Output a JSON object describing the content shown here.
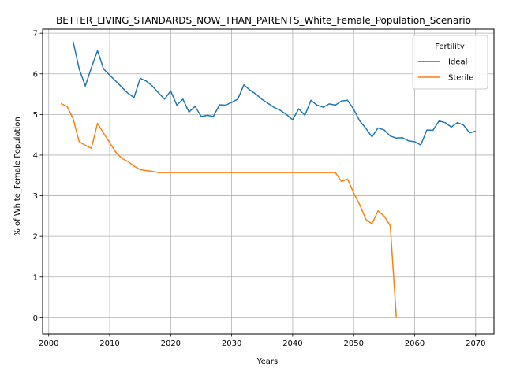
{
  "chart_data": {
    "type": "line",
    "title": "BETTER_LIVING_STANDARDS_NOW_THAN_PARENTS_White_Female_Population_Scenario",
    "xlabel": "Years",
    "ylabel": "% of White_Female Population",
    "xlim": [
      1999,
      2073
    ],
    "ylim": [
      -0.4,
      7.1
    ],
    "xticks": [
      2000,
      2010,
      2020,
      2030,
      2040,
      2050,
      2060,
      2070
    ],
    "yticks": [
      0,
      1,
      2,
      3,
      4,
      5,
      6,
      7
    ],
    "grid": true,
    "legend": {
      "title": "Fertility",
      "placement": "top-right"
    },
    "series": [
      {
        "name": "Ideal",
        "color": "#1f77b4",
        "x": [
          2004,
          2005,
          2006,
          2007,
          2008,
          2009,
          2010,
          2011,
          2012,
          2013,
          2014,
          2015,
          2016,
          2017,
          2018,
          2019,
          2020,
          2021,
          2022,
          2023,
          2024,
          2025,
          2026,
          2027,
          2028,
          2029,
          2030,
          2031,
          2032,
          2033,
          2034,
          2035,
          2036,
          2037,
          2038,
          2039,
          2040,
          2041,
          2042,
          2043,
          2044,
          2045,
          2046,
          2047,
          2048,
          2049,
          2050,
          2051,
          2052,
          2053,
          2054,
          2055,
          2056,
          2057,
          2058,
          2059,
          2060,
          2061,
          2062,
          2063,
          2064,
          2065,
          2066,
          2067,
          2068,
          2069,
          2070
        ],
        "y": [
          6.8,
          6.12,
          5.7,
          6.15,
          6.57,
          6.12,
          5.97,
          5.82,
          5.67,
          5.52,
          5.42,
          5.89,
          5.82,
          5.7,
          5.53,
          5.38,
          5.58,
          5.23,
          5.38,
          5.06,
          5.2,
          4.95,
          4.98,
          4.95,
          5.24,
          5.23,
          5.3,
          5.38,
          5.73,
          5.6,
          5.5,
          5.37,
          5.27,
          5.17,
          5.1,
          5.0,
          4.87,
          5.14,
          4.98,
          5.35,
          5.23,
          5.18,
          5.26,
          5.23,
          5.33,
          5.35,
          5.13,
          4.84,
          4.66,
          4.45,
          4.67,
          4.62,
          4.47,
          4.42,
          4.43,
          4.35,
          4.33,
          4.25,
          4.62,
          4.61,
          4.84,
          4.8,
          4.69,
          4.8,
          4.74,
          4.55,
          4.59
        ]
      },
      {
        "name": "Sterile",
        "color": "#ff7f0e",
        "x": [
          2002,
          2003,
          2004,
          2005,
          2006,
          2007,
          2008,
          2009,
          2010,
          2011,
          2012,
          2013,
          2014,
          2015,
          2016,
          2017,
          2018,
          2019,
          2020,
          2025,
          2030,
          2035,
          2040,
          2045,
          2046,
          2047,
          2048,
          2049,
          2050,
          2051,
          2052,
          2053,
          2054,
          2055,
          2056,
          2057
        ],
        "y": [
          5.27,
          5.2,
          4.9,
          4.33,
          4.24,
          4.17,
          4.78,
          4.54,
          4.31,
          4.07,
          3.92,
          3.84,
          3.73,
          3.64,
          3.62,
          3.6,
          3.57,
          3.57,
          3.57,
          3.57,
          3.57,
          3.57,
          3.57,
          3.57,
          3.57,
          3.57,
          3.35,
          3.41,
          3.07,
          2.78,
          2.42,
          2.31,
          2.63,
          2.5,
          2.26,
          0.0
        ]
      }
    ]
  }
}
